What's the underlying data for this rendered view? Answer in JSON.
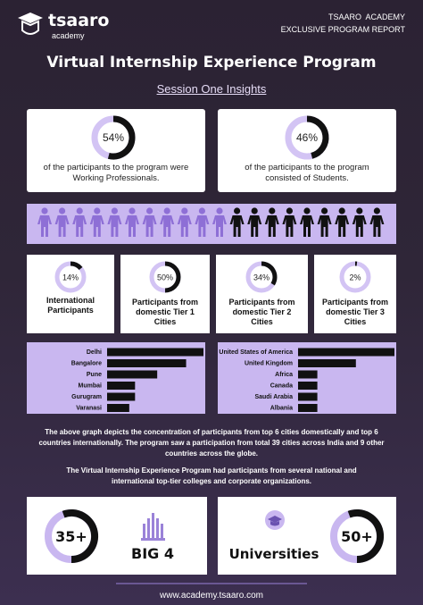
{
  "header": {
    "brand": "tsaaro",
    "brand_sub": "academy",
    "org": "TSAARO  ACADEMY",
    "report": "EXCLUSIVE PROGRAM REPORT"
  },
  "title": "Virtual Internship Experience Program",
  "subtitle": "Session One Insights",
  "stat_cards": [
    {
      "percent": {
        "value": 54,
        "label": "54%"
      },
      "text": "of the participants to the program were Working Professionals."
    },
    {
      "percent": {
        "value": 46,
        "label": "46%"
      },
      "text": "of the participants to the program consisted of Students."
    }
  ],
  "segment_cards": [
    {
      "percent": {
        "value": 14,
        "label": "14%"
      },
      "text": "International Participants"
    },
    {
      "percent": {
        "value": 50,
        "label": "50%"
      },
      "text": "Participants from domestic Tier 1 Cities"
    },
    {
      "percent": {
        "value": 34,
        "label": "34%"
      },
      "text": "Participants from domestic Tier 2 Cities"
    },
    {
      "percent": {
        "value": 2,
        "label": "2%"
      },
      "text": "Participants from domestic Tier 3 Cities"
    }
  ],
  "city_charts": [
    {
      "type": "bar",
      "categories": [
        "Delhi",
        "Bangalore",
        "Pune",
        "Mumbai",
        "Gurugram",
        "Varanasi"
      ],
      "values": [
        100,
        82,
        52,
        29,
        29,
        23
      ],
      "xlim": [
        0,
        100
      ],
      "color": "#111111"
    },
    {
      "type": "bar",
      "categories": [
        "United States of America",
        "United Kingdom",
        "Africa",
        "Canada",
        "Saudi Arabia",
        "Albania"
      ],
      "values": [
        100,
        60,
        20,
        20,
        20,
        20
      ],
      "xlim": [
        0,
        100
      ],
      "color": "#111111"
    }
  ],
  "paragraphs": [
    "The above graph depicts the concentration of participants from top 6 cities domestically and top 6 countries internationally. The program saw a participation from total 39 cities across India and 9 other countries across the globe.",
    "The Virtual Internship Experience Program had participants from several national and international top-tier colleges and corporate organizations."
  ],
  "highlights": [
    {
      "number": "35+",
      "label": "BIG 4"
    },
    {
      "number": "50+",
      "label": "Universities"
    }
  ],
  "footer": "www.academy.tsaaro.com"
}
